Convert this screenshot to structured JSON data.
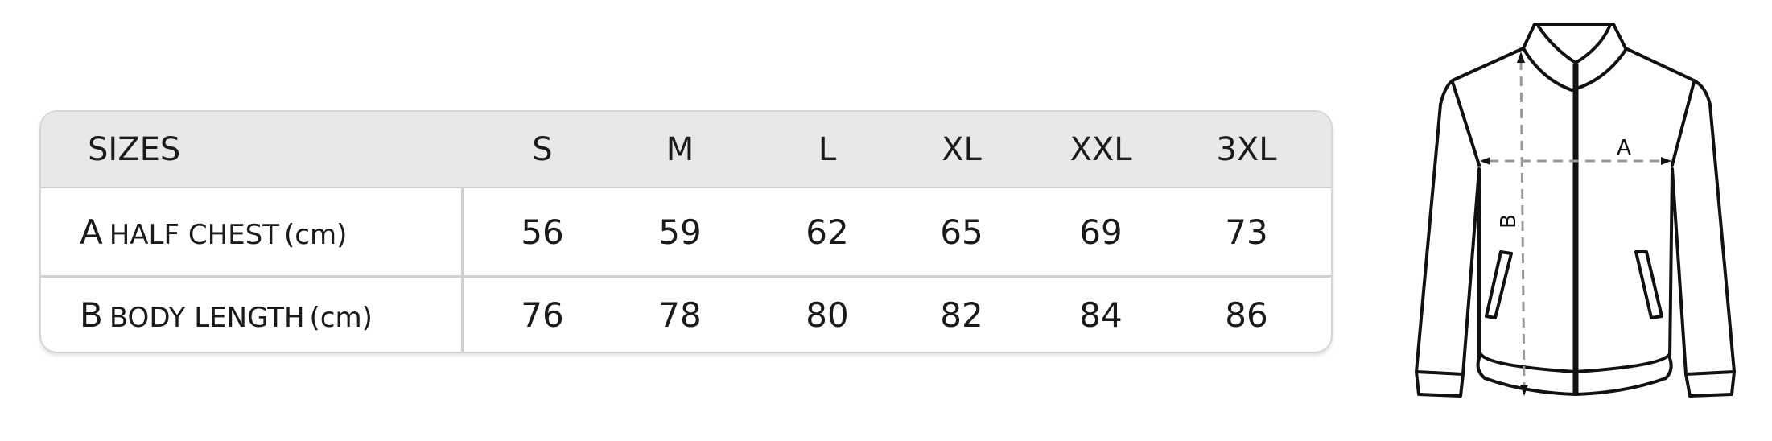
{
  "table": {
    "header_label": "SIZES",
    "sizes": [
      "S",
      "M",
      "L",
      "XL",
      "XXL",
      "3XL"
    ],
    "rows": [
      {
        "letter": "A",
        "name": "HALF CHEST",
        "unit": "(cm)",
        "values": [
          "56",
          "59",
          "62",
          "65",
          "69",
          "73"
        ]
      },
      {
        "letter": "B",
        "name": "BODY LENGTH",
        "unit": "(cm)",
        "values": [
          "76",
          "78",
          "80",
          "82",
          "84",
          "86"
        ]
      }
    ]
  },
  "diagram": {
    "label_a": "A",
    "label_b": "B",
    "icon": "jacket-measurement-diagram"
  }
}
